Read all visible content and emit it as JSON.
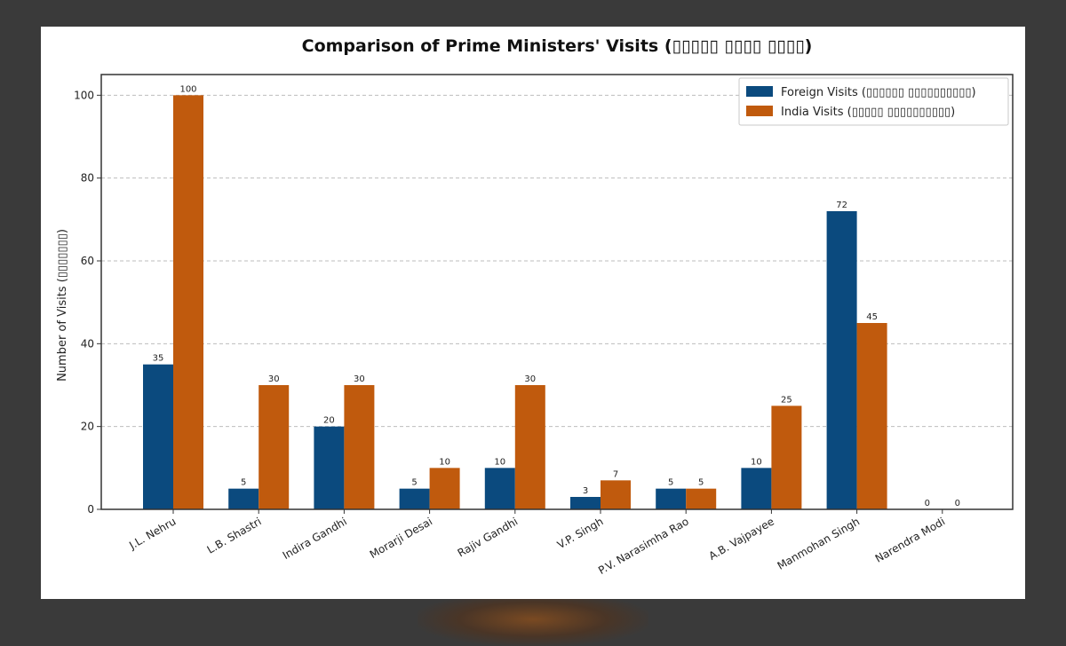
{
  "chart_data": {
    "type": "bar",
    "title": "Comparison of Prime Ministers' Visits (▯▯▯▯▯ ▯▯▯▯ ▯▯▯▯)",
    "xlabel": "",
    "ylabel": "Number of Visits (▯▯▯▯▯▯▯)",
    "ylim": [
      0,
      105
    ],
    "yticks": [
      0,
      20,
      40,
      60,
      80,
      100
    ],
    "grid": "horizontal-dashed",
    "legend_position": "top-right",
    "categories": [
      "J.L. Nehru",
      "L.B. Shastri",
      "Indira Gandhi",
      "Morarji Desai",
      "Rajiv Gandhi",
      "V.P. Singh",
      "P.V. Narasimha Rao",
      "A.B. Vajpayee",
      "Manmohan Singh",
      "Narendra Modi"
    ],
    "series": [
      {
        "name": "Foreign Visits (▯▯▯▯▯▯ ▯▯▯▯▯▯▯▯▯▯)",
        "color": "#0b4a7e",
        "values": [
          35,
          5,
          20,
          5,
          10,
          3,
          5,
          10,
          72,
          0
        ]
      },
      {
        "name": "India Visits (▯▯▯▯▯ ▯▯▯▯▯▯▯▯▯▯)",
        "color": "#c05a0d",
        "values": [
          100,
          30,
          30,
          10,
          30,
          7,
          5,
          25,
          45,
          0
        ]
      }
    ]
  }
}
